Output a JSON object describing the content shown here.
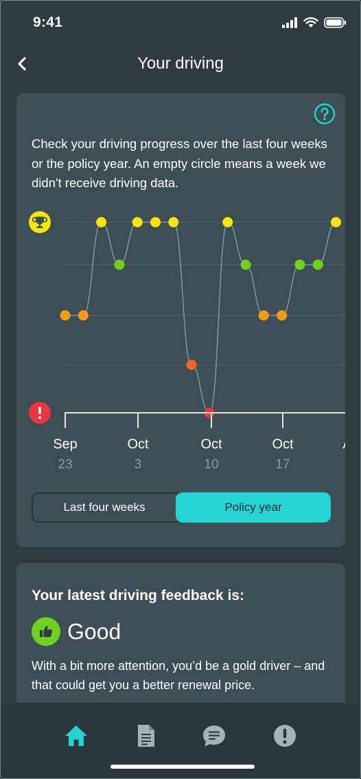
{
  "status_bar": {
    "time": "9:41"
  },
  "header": {
    "title": "Your driving",
    "back_icon": "chevron-left-icon"
  },
  "chart_card": {
    "intro": "Check your driving progress over the last four weeks or the policy year. An empty circle means a week we didn't receive driving data.",
    "help_icon": "question-mark-icon",
    "toggle": {
      "options": [
        "Last four weeks",
        "Policy year"
      ],
      "selected": "Policy year"
    }
  },
  "chart_data": {
    "type": "line",
    "title": "",
    "xlabel": "",
    "ylabel": "",
    "levels": {
      "top_icon": "trophy-icon",
      "bottom_icon": "alert-icon"
    },
    "ylim": [
      0,
      4
    ],
    "x_ticks": [
      {
        "month": "Sep",
        "day": "23"
      },
      {
        "month": "Oct",
        "day": "3"
      },
      {
        "month": "Oct",
        "day": "10"
      },
      {
        "month": "Oct",
        "day": "17"
      },
      {
        "month": "A",
        "day": ""
      }
    ],
    "points": [
      2,
      2,
      4,
      3,
      4,
      4,
      4,
      1,
      0,
      4,
      3,
      2,
      2,
      3,
      3,
      4
    ],
    "colors": {
      "4": "#f5e50a",
      "3": "#6ed11f",
      "2": "#f59a1b",
      "1": "#f26522",
      "0": "#e8383d",
      "line": "#7d96a2",
      "grid": "#566970"
    }
  },
  "feedback_card": {
    "heading": "Your latest driving feedback is:",
    "rating": "Good",
    "rating_icon": "thumbs-up-icon",
    "body": "With a bit more attention, you’d be a gold driver – and that could get you a better renewal price."
  },
  "tab_bar": {
    "active": "home",
    "accent": "#26d3d3",
    "tabs": [
      {
        "id": "home",
        "icon": "home-icon"
      },
      {
        "id": "documents",
        "icon": "document-icon"
      },
      {
        "id": "messages",
        "icon": "chat-icon"
      },
      {
        "id": "alerts",
        "icon": "alert-icon"
      }
    ]
  }
}
